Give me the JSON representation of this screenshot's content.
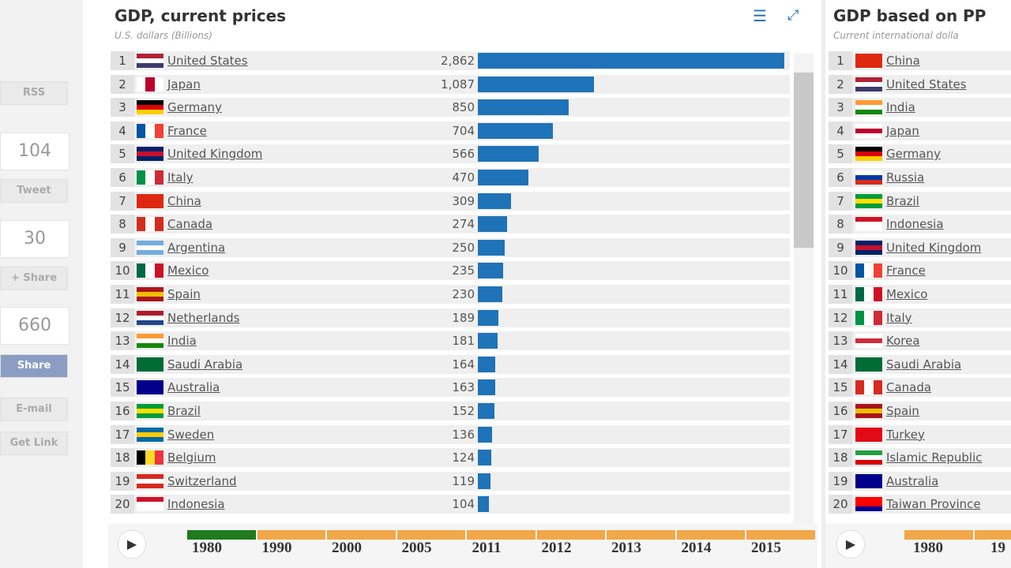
{
  "sidebar": {
    "buttons": [
      "RSS",
      "104",
      "Tweet",
      "30",
      "+ Share",
      "660",
      "Share",
      "E-mail",
      "Get Link"
    ]
  },
  "chart_data": {
    "type": "bar",
    "orientation": "horizontal",
    "title": "GDP, current prices",
    "subtitle": "U.S. dollars (Billions)",
    "ranks": [
      1,
      2,
      3,
      4,
      5,
      6,
      7,
      8,
      9,
      10,
      11,
      12,
      13,
      14,
      15,
      16,
      17,
      18,
      19,
      20
    ],
    "categories": [
      "United States",
      "Japan",
      "Germany",
      "France",
      "United Kingdom",
      "Italy",
      "China",
      "Canada",
      "Argentina",
      "Mexico",
      "Spain",
      "Netherlands",
      "India",
      "Saudi Arabia",
      "Australia",
      "Brazil",
      "Sweden",
      "Belgium",
      "Switzerland",
      "Indonesia"
    ],
    "values": [
      2862,
      1087,
      850,
      704,
      566,
      470,
      309,
      274,
      250,
      235,
      230,
      189,
      181,
      164,
      163,
      152,
      136,
      124,
      119,
      104
    ],
    "value_labels": [
      "2,862",
      "1,087",
      "850",
      "704",
      "566",
      "470",
      "309",
      "274",
      "250",
      "235",
      "230",
      "189",
      "181",
      "164",
      "163",
      "152",
      "136",
      "124",
      "119",
      "104"
    ],
    "color": "#1f73b8",
    "timeline": {
      "years": [
        "1980",
        "1990",
        "2000",
        "2005",
        "2011",
        "2012",
        "2013",
        "2014",
        "2015"
      ],
      "selected": 0
    }
  },
  "right_panel": {
    "title": "GDP based on PP",
    "subtitle": "Current international dolla",
    "ranks": [
      1,
      2,
      3,
      4,
      5,
      6,
      7,
      8,
      9,
      10,
      11,
      12,
      13,
      14,
      15,
      16,
      17,
      18,
      19,
      20
    ],
    "categories": [
      "China",
      "United States",
      "India",
      "Japan",
      "Germany",
      "Russia",
      "Brazil",
      "Indonesia",
      "United Kingdom",
      "France",
      "Mexico",
      "Italy",
      "Korea",
      "Saudi Arabia",
      "Canada",
      "Spain",
      "Turkey",
      "Islamic Republic",
      "Australia",
      "Taiwan Province"
    ],
    "timeline": {
      "years": [
        "1980",
        "19"
      ]
    }
  }
}
